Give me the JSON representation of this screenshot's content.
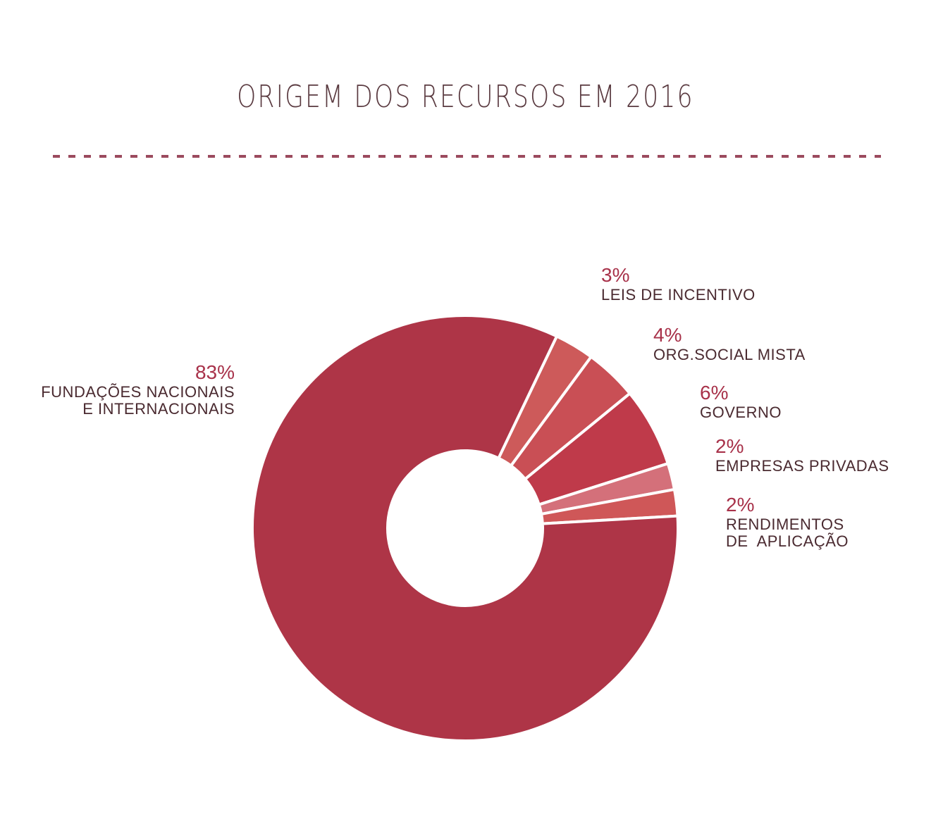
{
  "chart_data": {
    "type": "donut",
    "title": "ORIGEM DOS RECURSOS EM 2016",
    "categories": [
      "FUNDAÇÕES NACIONAIS\nE INTERNACIONAIS",
      "LEIS DE INCENTIVO",
      "ORG.SOCIAL MISTA",
      "GOVERNO",
      "EMPRESAS PRIVADAS",
      "RENDIMENTOS\nDE  APLICAÇÃO"
    ],
    "values": [
      83,
      3,
      4,
      6,
      2,
      2
    ],
    "value_labels": [
      "83%",
      "3%",
      "4%",
      "6%",
      "2%",
      "2%"
    ],
    "colors": [
      "#ae3547",
      "#cd5a5a",
      "#c94f55",
      "#bf3a4a",
      "#d4707a",
      "#cf5758"
    ]
  }
}
